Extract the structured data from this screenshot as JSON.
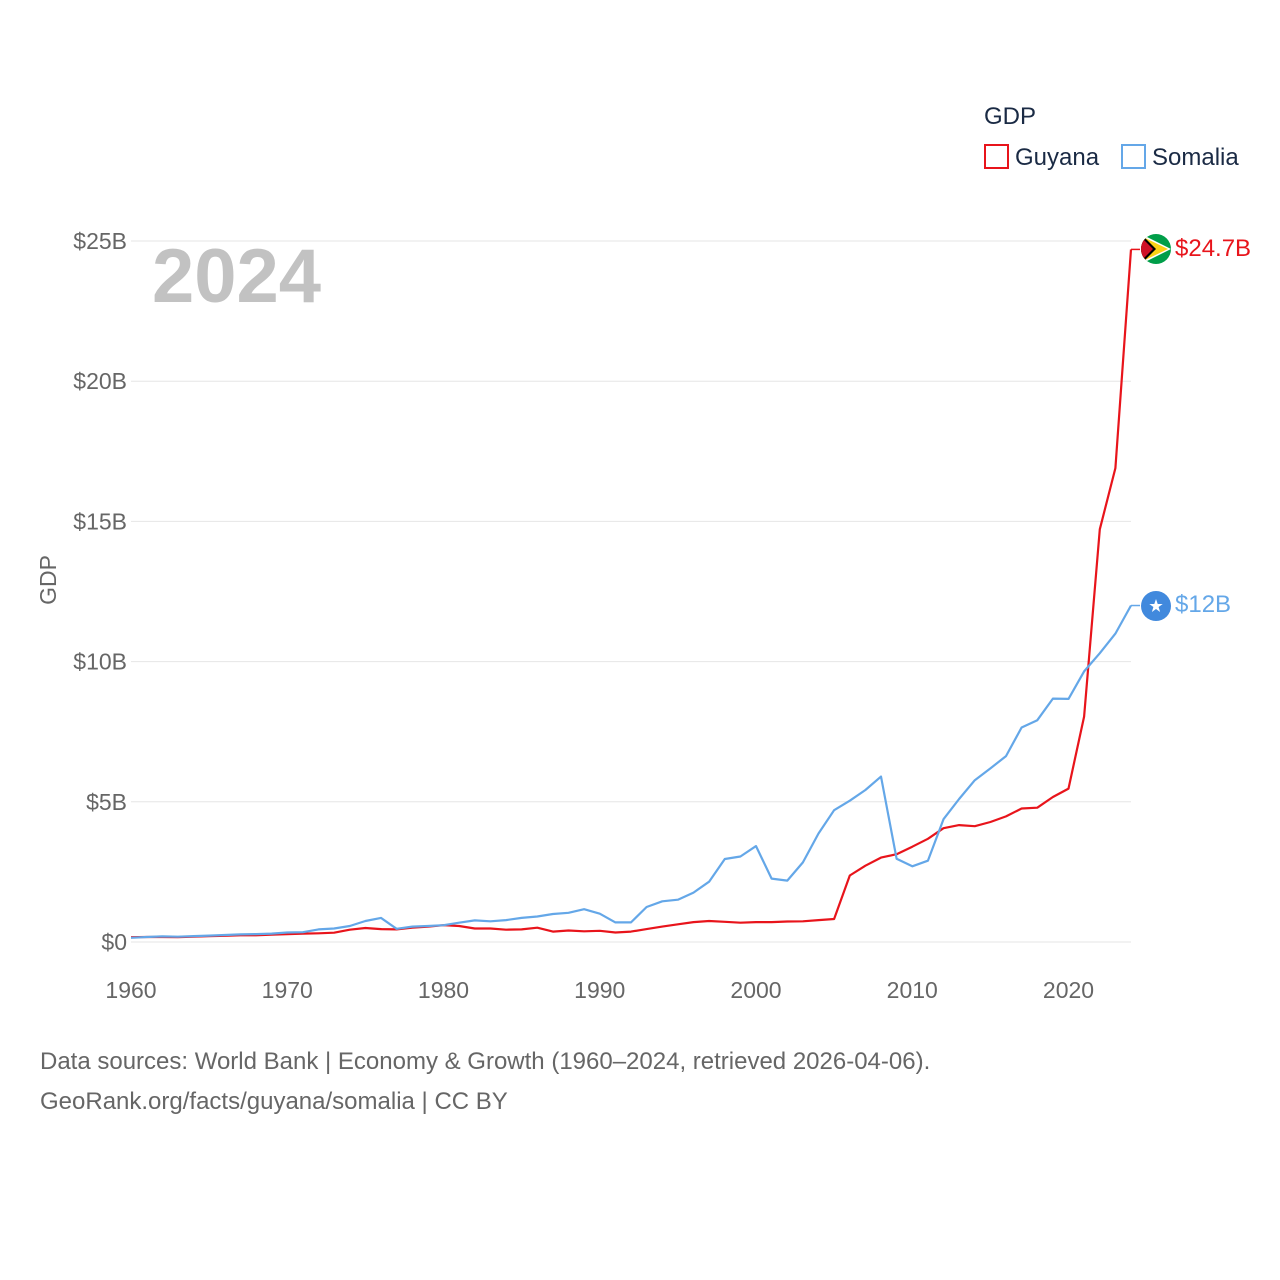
{
  "chart_data": {
    "type": "line",
    "ylabel": "GDP",
    "legend_title": "GDP",
    "legend_position": "top-right",
    "year_label": "2024",
    "xlim": [
      1960,
      2024
    ],
    "ylim": [
      0,
      25
    ],
    "x_ticks": [
      1960,
      1970,
      1980,
      1990,
      2000,
      2010,
      2020
    ],
    "x_tick_labels": [
      "1960",
      "1970",
      "1980",
      "1990",
      "2000",
      "2010",
      "2020"
    ],
    "y_ticks": [
      0,
      5,
      10,
      15,
      20,
      25
    ],
    "y_tick_labels": [
      "$0",
      "$5B",
      "$10B",
      "$15B",
      "$20B",
      "$25B"
    ],
    "x": [
      1960,
      1961,
      1962,
      1963,
      1964,
      1965,
      1966,
      1967,
      1968,
      1969,
      1970,
      1971,
      1972,
      1973,
      1974,
      1975,
      1976,
      1977,
      1978,
      1979,
      1980,
      1981,
      1982,
      1983,
      1984,
      1985,
      1986,
      1987,
      1988,
      1989,
      1990,
      1991,
      1992,
      1993,
      1994,
      1995,
      1996,
      1997,
      1998,
      1999,
      2000,
      2001,
      2002,
      2003,
      2004,
      2005,
      2006,
      2007,
      2008,
      2009,
      2010,
      2011,
      2012,
      2013,
      2014,
      2015,
      2016,
      2017,
      2018,
      2019,
      2020,
      2021,
      2022,
      2023,
      2024
    ],
    "series": [
      {
        "name": "Guyana",
        "color": "#e8141b",
        "end_label": "$24.7B",
        "values": [
          0.17,
          0.18,
          0.18,
          0.17,
          0.19,
          0.21,
          0.22,
          0.24,
          0.24,
          0.26,
          0.28,
          0.3,
          0.31,
          0.33,
          0.44,
          0.5,
          0.46,
          0.45,
          0.51,
          0.55,
          0.6,
          0.57,
          0.48,
          0.48,
          0.44,
          0.45,
          0.51,
          0.37,
          0.41,
          0.38,
          0.4,
          0.34,
          0.37,
          0.46,
          0.55,
          0.63,
          0.71,
          0.75,
          0.72,
          0.69,
          0.71,
          0.71,
          0.73,
          0.74,
          0.78,
          0.82,
          2.37,
          2.72,
          3.01,
          3.13,
          3.4,
          3.68,
          4.06,
          4.17,
          4.13,
          4.28,
          4.48,
          4.76,
          4.79,
          5.17,
          5.47,
          8.04,
          14.72,
          16.9,
          24.7
        ]
      },
      {
        "name": "Somalia",
        "color": "#64a7e8",
        "end_label": "$12B",
        "values": [
          0.15,
          0.18,
          0.2,
          0.19,
          0.21,
          0.23,
          0.25,
          0.27,
          0.28,
          0.3,
          0.34,
          0.35,
          0.45,
          0.48,
          0.57,
          0.75,
          0.86,
          0.47,
          0.55,
          0.57,
          0.6,
          0.69,
          0.77,
          0.74,
          0.78,
          0.86,
          0.91,
          1.0,
          1.04,
          1.17,
          1.01,
          0.7,
          0.7,
          1.25,
          1.45,
          1.51,
          1.76,
          2.15,
          2.96,
          3.05,
          3.42,
          2.26,
          2.19,
          2.84,
          3.87,
          4.7,
          5.04,
          5.42,
          5.9,
          2.97,
          2.7,
          2.9,
          4.38,
          5.1,
          5.77,
          6.19,
          6.63,
          7.65,
          7.91,
          8.68,
          8.67,
          9.65,
          10.3,
          11.0,
          12.0
        ]
      }
    ]
  },
  "source": {
    "line1": "Data sources: World Bank | Economy & Growth (1960–2024, retrieved 2026-04-06).",
    "line2": "GeoRank.org/facts/guyana/somalia | CC BY"
  }
}
